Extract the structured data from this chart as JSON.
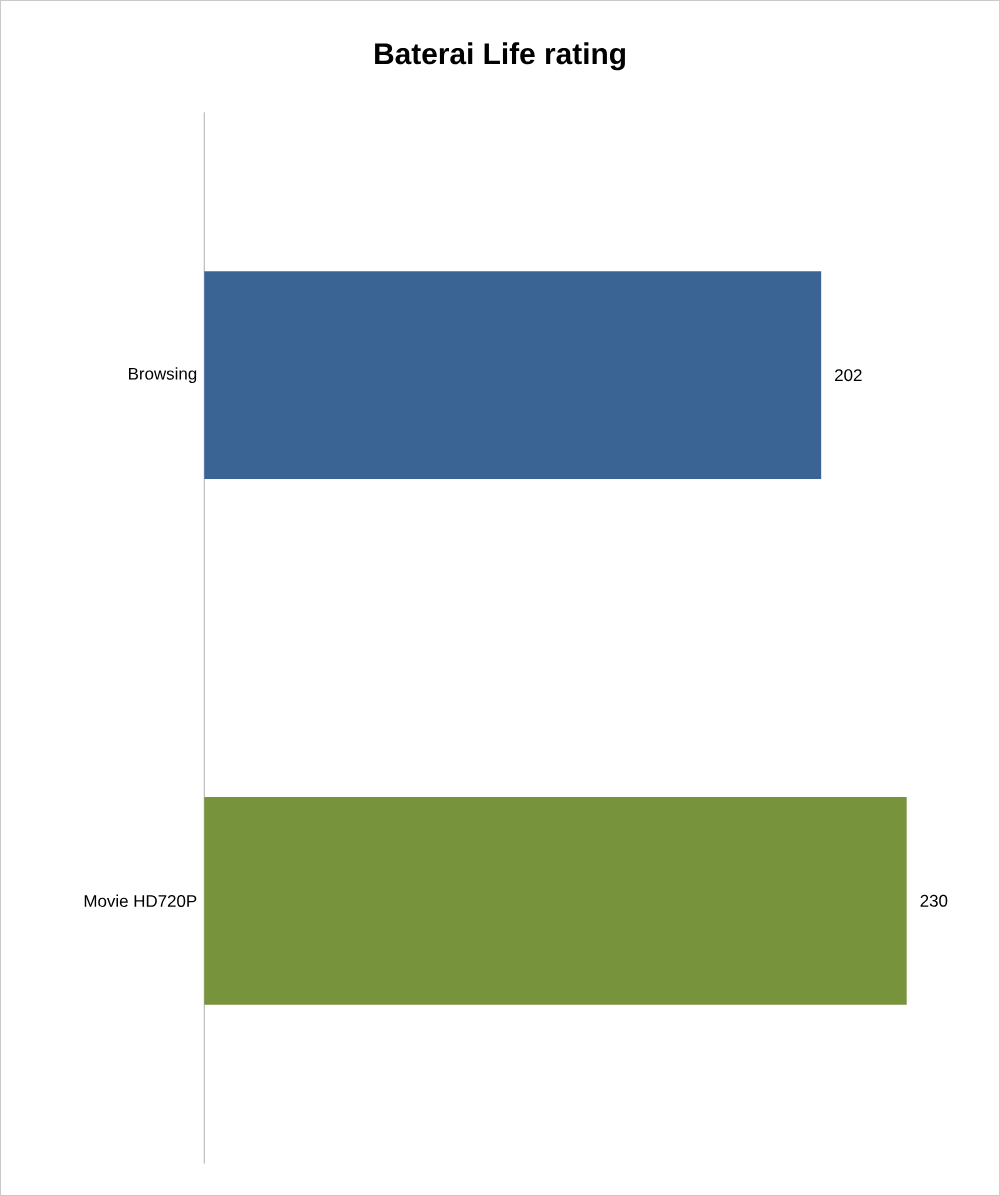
{
  "chart_data": {
    "type": "bar",
    "orientation": "horizontal",
    "title": "Baterai Life rating",
    "categories": [
      "Browsing",
      "Movie HD720P"
    ],
    "values": [
      202,
      230
    ],
    "colors": [
      "#3a6494",
      "#77933c"
    ],
    "data_labels": true
  }
}
